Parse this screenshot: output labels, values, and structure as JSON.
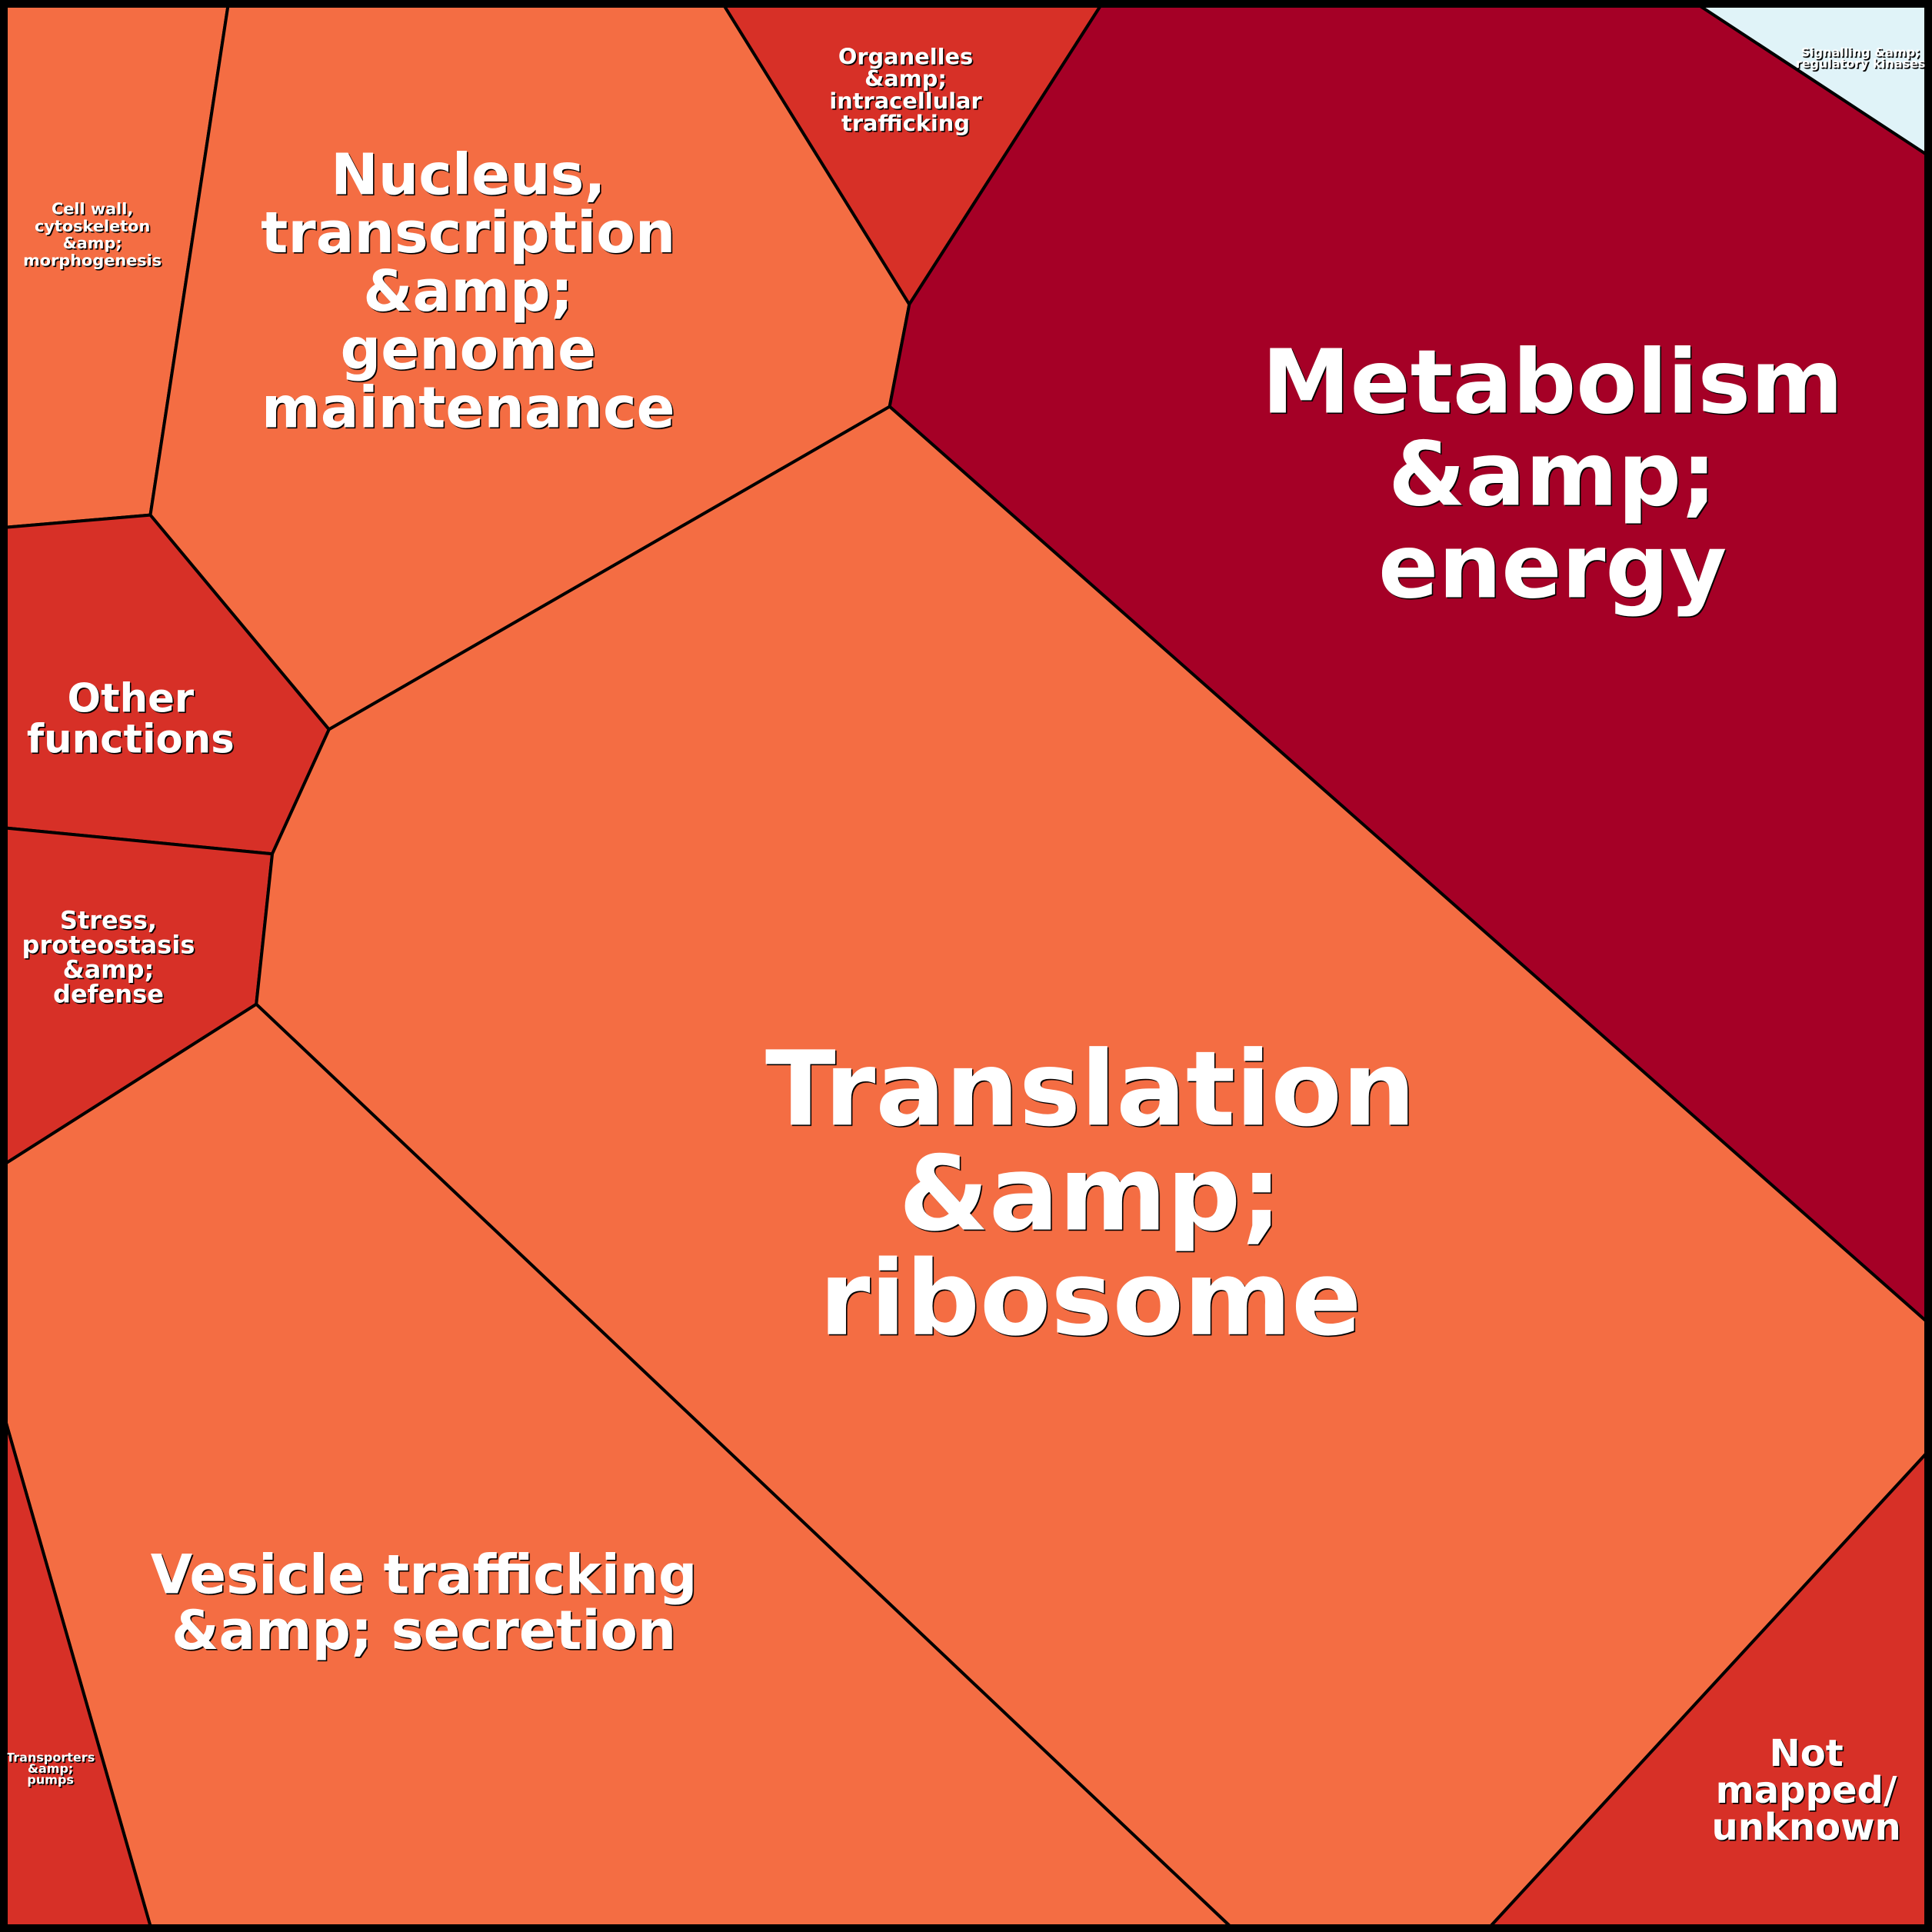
{
  "cells": [
    {
      "lines": [
        "Cell wall,",
        "cytoskeleton",
        "&amp;",
        "morphogenesis"
      ],
      "color": "#f46d43"
    },
    {
      "lines": [
        "Nucleus,",
        "transcription",
        "&amp;",
        "genome",
        "maintenance"
      ],
      "color": "#f46d43"
    },
    {
      "lines": [
        "Organelles",
        "&amp;",
        "intracellular",
        "trafficking"
      ],
      "color": "#d73027"
    },
    {
      "lines": [
        "Metabolism",
        "&amp;",
        "energy"
      ],
      "color": "#a50026"
    },
    {
      "lines": [
        "Signalling &amp;",
        "regulatory kinases"
      ],
      "color": "#e0f3f8"
    },
    {
      "lines": [
        "Other",
        "functions"
      ],
      "color": "#d73027"
    },
    {
      "lines": [
        "Stress,",
        "proteostasis",
        "&amp;",
        "defense"
      ],
      "color": "#d73027"
    },
    {
      "lines": [
        "Translation",
        "&amp;",
        "ribosome"
      ],
      "color": "#f46d43"
    },
    {
      "lines": [
        "Vesicle trafficking",
        "&amp; secretion"
      ],
      "color": "#f46d43"
    },
    {
      "lines": [
        "Transporters",
        "&amp;",
        "pumps"
      ],
      "color": "#d73027"
    },
    {
      "lines": [
        "Not",
        "mapped/",
        "unknown"
      ],
      "color": "#d73027"
    }
  ]
}
